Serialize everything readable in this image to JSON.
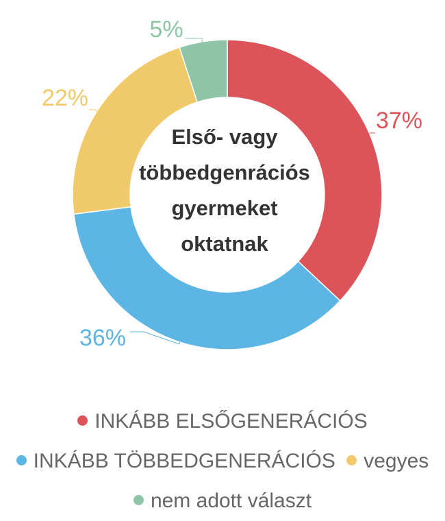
{
  "chart_data": {
    "type": "pie",
    "donut": true,
    "center_title_lines": [
      "Első- vagy",
      "többedgenrációs",
      "gyermeket",
      "oktatnak"
    ],
    "slices": [
      {
        "label": "INKÁBB ELSŐGENERÁCIÓS",
        "value": 37,
        "display": "37%",
        "color": "#dc5459"
      },
      {
        "label": "INKÁBB TÖBBEDGENERÁCIÓS",
        "value": 36,
        "display": "36%",
        "color": "#5db5e3"
      },
      {
        "label": "vegyes",
        "value": 22,
        "display": "22%",
        "color": "#f0ca6a"
      },
      {
        "label": "nem adott választ",
        "value": 5,
        "display": "5%",
        "color": "#8dc5a6"
      }
    ],
    "legend_position": "bottom"
  }
}
